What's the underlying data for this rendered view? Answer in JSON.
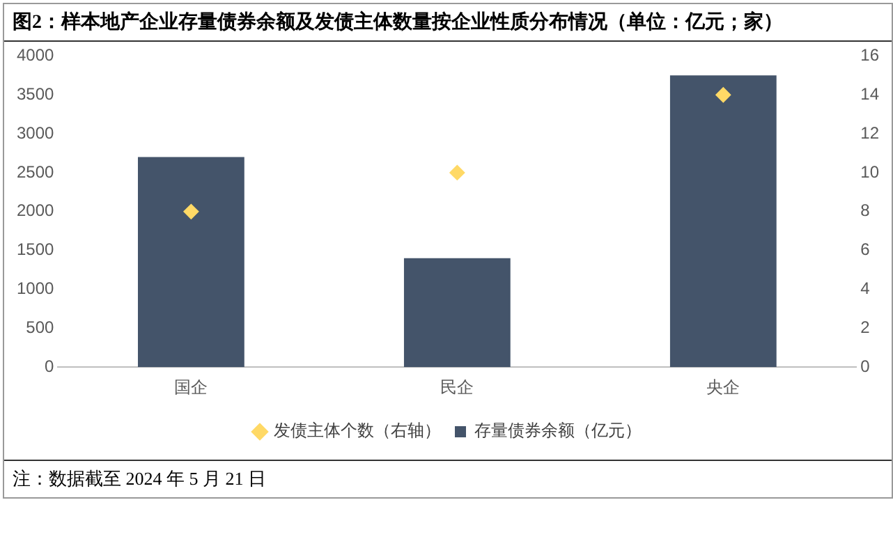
{
  "chart_data": {
    "type": "bar",
    "title": "图2：样本地产企业存量债券余额及发债主体数量按企业性质分布情况（单位：亿元；家）",
    "categories": [
      "国企",
      "民企",
      "央企"
    ],
    "series": [
      {
        "name": "存量债券余额（亿元）",
        "color": "#44546a",
        "values": [
          2700,
          1400,
          3750
        ]
      },
      {
        "name": "发债主体个数（右轴）",
        "type": "scatter",
        "axis": "y2",
        "x": [
          "国企",
          "民企",
          "央企"
        ],
        "color": "#ffd966",
        "marker": "diamond",
        "values": [
          8,
          10,
          14
        ]
      }
    ],
    "ylim": [
      0,
      4000
    ],
    "yticks": [
      0,
      500,
      1000,
      1500,
      2000,
      2500,
      3000,
      3500,
      4000
    ],
    "y2lim": [
      0,
      16
    ],
    "y2ticks": [
      0,
      2,
      4,
      6,
      8,
      10,
      12,
      14,
      16
    ],
    "grid": false,
    "legend": "bottom",
    "annotations": [
      "注：数据截至 2024 年 5 月 21 日"
    ]
  }
}
